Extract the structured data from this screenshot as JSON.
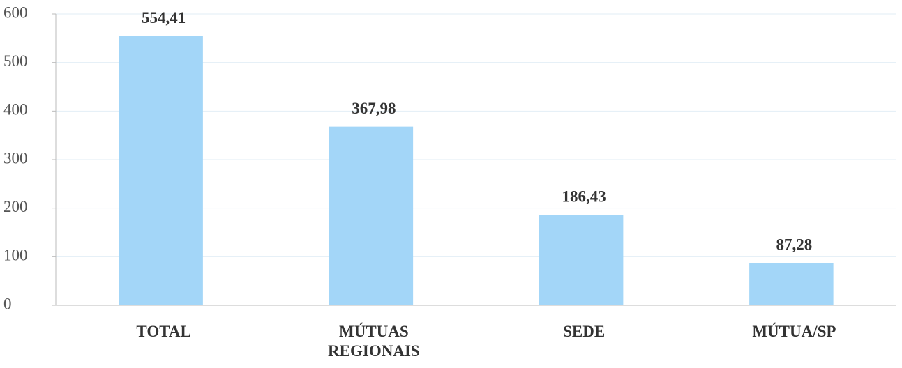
{
  "chart_data": {
    "type": "bar",
    "categories": [
      "TOTAL",
      "MÚTUAS REGIONAIS",
      "SEDE",
      "MÚTUA/SP"
    ],
    "values": [
      554.41,
      367.98,
      186.43,
      87.28
    ],
    "value_labels": [
      "554,41",
      "367,98",
      "186,43",
      "87,28"
    ],
    "color": "#a3d6f8",
    "ylim": [
      0,
      600
    ],
    "yticks": [
      0,
      100,
      200,
      300,
      400,
      500,
      600
    ],
    "grid": true
  }
}
